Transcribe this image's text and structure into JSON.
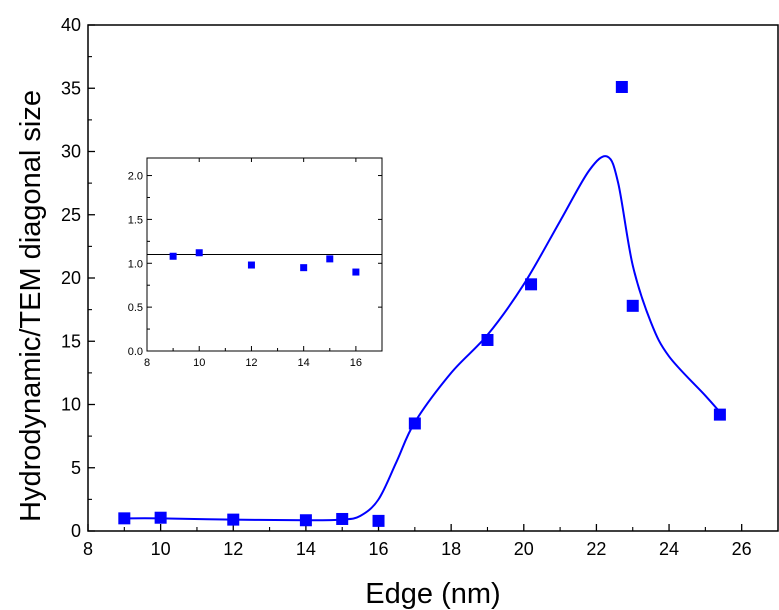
{
  "chart_data": [
    {
      "type": "scatter",
      "xlabel": "Edge (nm)",
      "ylabel": "Hydrodynamic/TEM diagonal size",
      "xlim": [
        8,
        27
      ],
      "ylim": [
        0,
        40
      ],
      "x_ticks": [
        "8",
        "10",
        "12",
        "14",
        "16",
        "18",
        "20",
        "22",
        "24",
        "26"
      ],
      "y_ticks": [
        "0",
        "5",
        "10",
        "15",
        "20",
        "25",
        "30",
        "35",
        "40"
      ],
      "grid": false,
      "marker_color": "#0000ff",
      "line_color": "#0000ff",
      "series": [
        {
          "x": [
            9,
            10,
            12,
            14,
            15,
            16,
            17,
            19,
            20.2,
            22.7,
            23,
            25.4
          ],
          "y": [
            1.0,
            1.05,
            0.9,
            0.85,
            0.95,
            0.8,
            8.5,
            15.1,
            19.5,
            35.1,
            17.8,
            9.2
          ]
        }
      ],
      "fit_curve": {
        "x": [
          9,
          10,
          12,
          14,
          15,
          15.5,
          16,
          16.5,
          17,
          18,
          19,
          20,
          21,
          21.8,
          22.3,
          22.6,
          23,
          23.5,
          24,
          25,
          25.4
        ],
        "y": [
          1.0,
          1.0,
          0.9,
          0.85,
          0.9,
          1.2,
          2.5,
          5.5,
          8.6,
          12.5,
          15.5,
          19.5,
          24.5,
          28.5,
          29.6,
          27.5,
          21.0,
          16.5,
          13.8,
          10.7,
          9.4
        ]
      }
    },
    {
      "type": "scatter",
      "inset": true,
      "xlim": [
        8,
        17
      ],
      "ylim": [
        0,
        2.2
      ],
      "x_ticks": [
        "8",
        "10",
        "12",
        "14",
        "16"
      ],
      "y_ticks": [
        "0.0",
        "0.5",
        "1.0",
        "1.5",
        "2.0"
      ],
      "reference_line_y": 1.1,
      "series": [
        {
          "x": [
            9,
            10,
            12,
            14,
            15,
            16
          ],
          "y": [
            1.08,
            1.12,
            0.98,
            0.95,
            1.05,
            0.9
          ]
        }
      ]
    }
  ]
}
